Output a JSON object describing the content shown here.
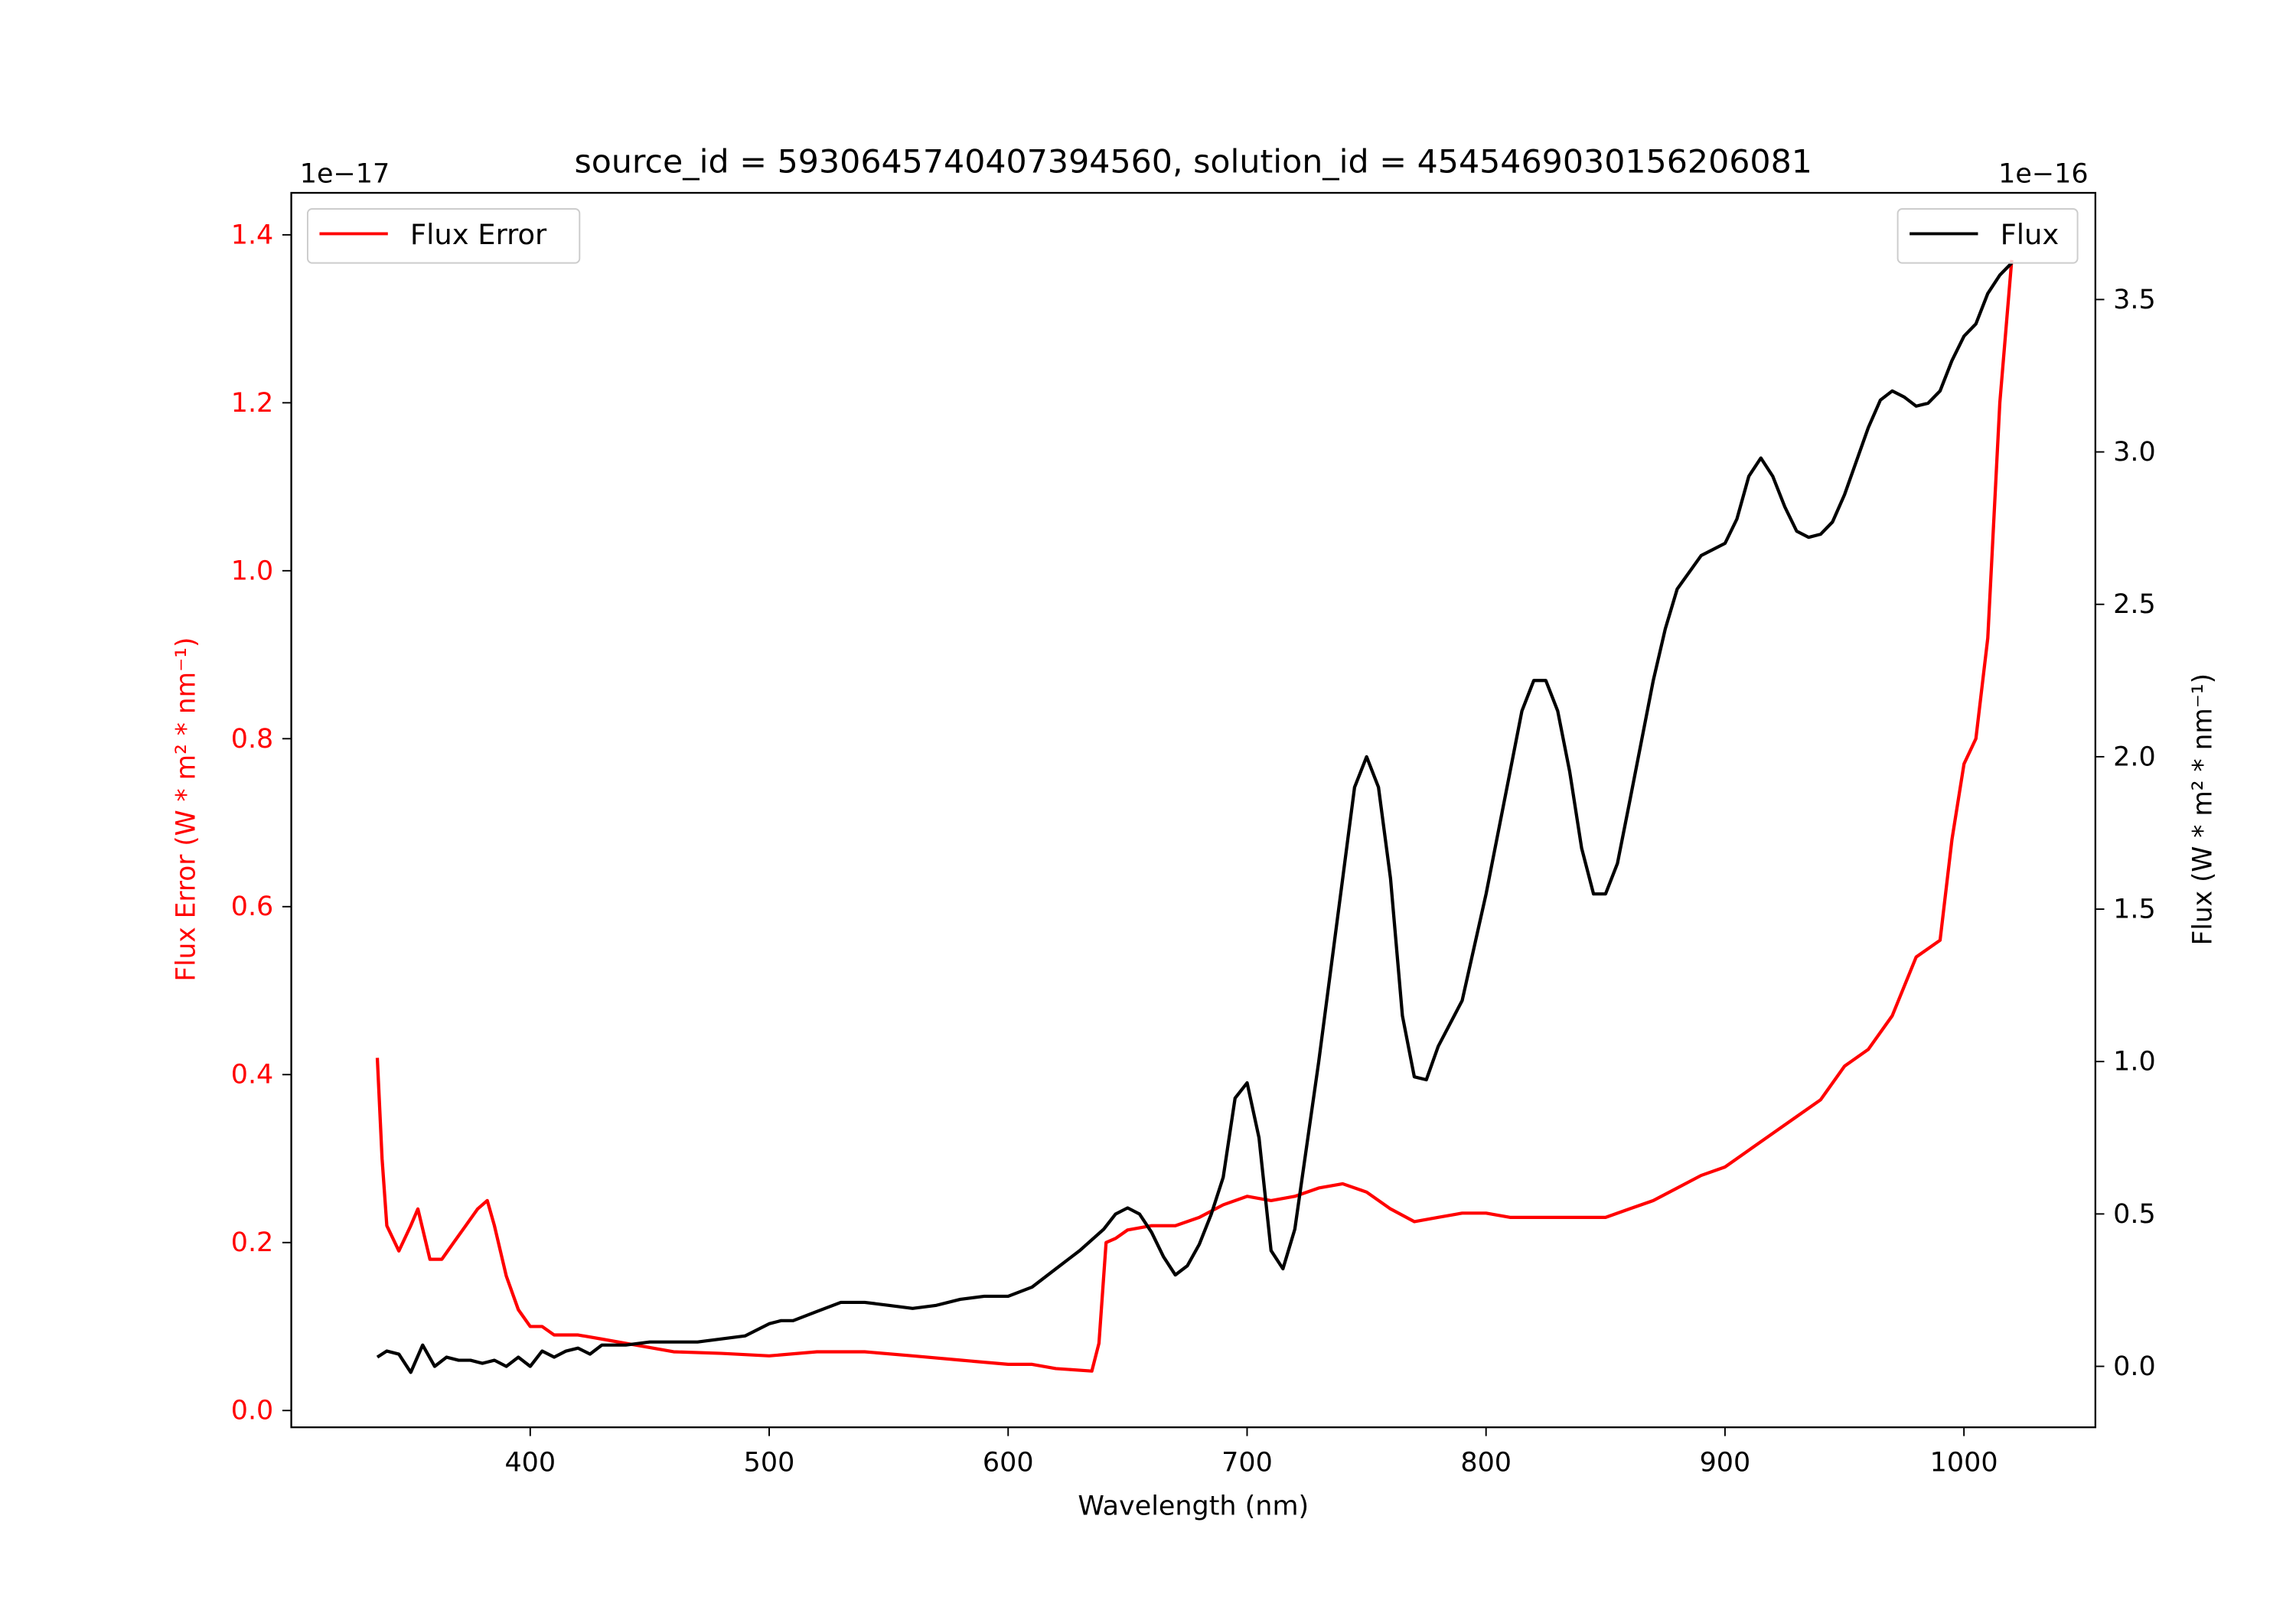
{
  "chart_data": {
    "type": "line",
    "title": "source_id = 5930645740407394560, solution_id = 4545469030156206081",
    "xlabel": "Wavelength (nm)",
    "xlim": [
      300,
      1055
    ],
    "xticks": [
      400,
      500,
      600,
      700,
      800,
      900,
      1000
    ],
    "left_axis": {
      "ylabel": "Flux Error (W * m$^2$ * nm$^{-1}$)",
      "ylabel_display": "Flux Error (W * m² * nm⁻¹)",
      "offset": "1e−17",
      "ylim": [
        -0.02,
        1.45
      ],
      "yticks": [
        "0.0",
        "0.2",
        "0.4",
        "0.6",
        "0.8",
        "1.0",
        "1.2",
        "1.4"
      ],
      "color": "#ff0000"
    },
    "right_axis": {
      "ylabel_display": "Flux (W * m² * nm⁻¹)",
      "offset": "1e−16",
      "ylim": [
        -0.2,
        3.85
      ],
      "yticks": [
        "0.0",
        "0.5",
        "1.0",
        "1.5",
        "2.0",
        "2.5",
        "3.0",
        "3.5"
      ],
      "color": "#000000"
    },
    "series": [
      {
        "name": "Flux Error",
        "axis": "left",
        "color": "#ff0000",
        "x": [
          336,
          338,
          340,
          345,
          350,
          353,
          358,
          363,
          368,
          373,
          378,
          382,
          385,
          390,
          395,
          400,
          405,
          410,
          420,
          430,
          440,
          450,
          460,
          480,
          500,
          520,
          540,
          560,
          580,
          600,
          610,
          620,
          635,
          638,
          641,
          645,
          650,
          660,
          670,
          680,
          690,
          700,
          710,
          720,
          730,
          740,
          750,
          760,
          770,
          780,
          790,
          800,
          810,
          820,
          830,
          840,
          850,
          860,
          870,
          880,
          890,
          900,
          910,
          920,
          930,
          940,
          950,
          960,
          970,
          980,
          990,
          995,
          1000,
          1005,
          1010,
          1015,
          1020
        ],
        "y": [
          0.42,
          0.3,
          0.22,
          0.19,
          0.22,
          0.24,
          0.18,
          0.18,
          0.2,
          0.22,
          0.24,
          0.25,
          0.22,
          0.16,
          0.12,
          0.1,
          0.1,
          0.09,
          0.09,
          0.085,
          0.08,
          0.075,
          0.07,
          0.068,
          0.065,
          0.07,
          0.07,
          0.065,
          0.06,
          0.055,
          0.055,
          0.05,
          0.047,
          0.08,
          0.2,
          0.205,
          0.215,
          0.22,
          0.22,
          0.23,
          0.245,
          0.255,
          0.25,
          0.255,
          0.265,
          0.27,
          0.26,
          0.24,
          0.225,
          0.23,
          0.235,
          0.235,
          0.23,
          0.23,
          0.23,
          0.23,
          0.23,
          0.24,
          0.25,
          0.265,
          0.28,
          0.29,
          0.31,
          0.33,
          0.35,
          0.37,
          0.41,
          0.43,
          0.47,
          0.54,
          0.56,
          0.68,
          0.77,
          0.8,
          0.92,
          1.2,
          1.37
        ]
      },
      {
        "name": "Flux",
        "axis": "right",
        "color": "#000000",
        "x": [
          336,
          340,
          345,
          350,
          355,
          360,
          365,
          370,
          375,
          380,
          385,
          390,
          395,
          400,
          405,
          410,
          415,
          420,
          425,
          430,
          440,
          450,
          460,
          470,
          480,
          490,
          500,
          505,
          510,
          520,
          530,
          540,
          550,
          560,
          570,
          580,
          590,
          600,
          610,
          620,
          630,
          640,
          645,
          650,
          655,
          660,
          665,
          670,
          675,
          680,
          685,
          690,
          695,
          700,
          705,
          710,
          715,
          720,
          730,
          740,
          745,
          750,
          755,
          760,
          765,
          770,
          775,
          780,
          790,
          800,
          810,
          815,
          820,
          825,
          830,
          835,
          840,
          845,
          850,
          855,
          860,
          870,
          875,
          880,
          890,
          900,
          905,
          910,
          915,
          920,
          925,
          930,
          935,
          940,
          945,
          950,
          960,
          965,
          970,
          975,
          980,
          985,
          990,
          995,
          1000,
          1005,
          1010,
          1015,
          1020
        ],
        "y": [
          0.03,
          0.05,
          0.04,
          -0.02,
          0.07,
          0.0,
          0.03,
          0.02,
          0.02,
          0.01,
          0.02,
          0.0,
          0.03,
          0.0,
          0.05,
          0.03,
          0.05,
          0.06,
          0.04,
          0.07,
          0.07,
          0.08,
          0.08,
          0.08,
          0.09,
          0.1,
          0.14,
          0.15,
          0.15,
          0.18,
          0.21,
          0.21,
          0.2,
          0.19,
          0.2,
          0.22,
          0.23,
          0.23,
          0.26,
          0.32,
          0.38,
          0.45,
          0.5,
          0.52,
          0.5,
          0.44,
          0.36,
          0.3,
          0.33,
          0.4,
          0.5,
          0.62,
          0.88,
          0.93,
          0.75,
          0.38,
          0.32,
          0.45,
          1.0,
          1.6,
          1.9,
          2.0,
          1.9,
          1.6,
          1.15,
          0.95,
          0.94,
          1.05,
          1.2,
          1.55,
          1.95,
          2.15,
          2.25,
          2.25,
          2.15,
          1.95,
          1.7,
          1.55,
          1.55,
          1.65,
          1.85,
          2.25,
          2.42,
          2.55,
          2.66,
          2.7,
          2.78,
          2.92,
          2.98,
          2.92,
          2.82,
          2.74,
          2.72,
          2.73,
          2.77,
          2.86,
          3.08,
          3.17,
          3.2,
          3.18,
          3.15,
          3.16,
          3.2,
          3.3,
          3.38,
          3.42,
          3.52,
          3.58,
          3.62
        ]
      }
    ],
    "legends": [
      {
        "label": "Flux Error",
        "placement": "upper-left",
        "color": "#ff0000"
      },
      {
        "label": "Flux",
        "placement": "upper-right",
        "color": "#000000"
      }
    ],
    "grid": false
  }
}
